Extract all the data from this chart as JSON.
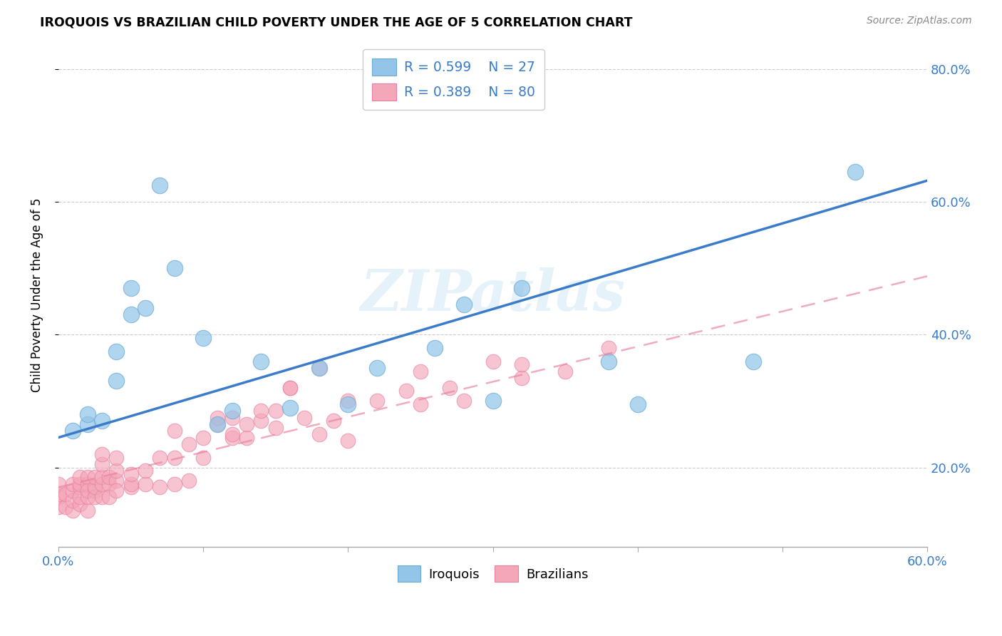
{
  "title": "IROQUOIS VS BRAZILIAN CHILD POVERTY UNDER THE AGE OF 5 CORRELATION CHART",
  "source": "Source: ZipAtlas.com",
  "ylabel": "Child Poverty Under the Age of 5",
  "xlim": [
    0.0,
    0.6
  ],
  "ylim": [
    0.08,
    0.84
  ],
  "xtick_positions": [
    0.0,
    0.1,
    0.2,
    0.3,
    0.4,
    0.5,
    0.6
  ],
  "xtick_labels": [
    "0.0%",
    "",
    "",
    "",
    "",
    "",
    "60.0%"
  ],
  "ytick_positions": [
    0.2,
    0.4,
    0.6,
    0.8
  ],
  "ytick_labels": [
    "20.0%",
    "40.0%",
    "60.0%",
    "80.0%"
  ],
  "iroquois_color": "#92C5E8",
  "iroquois_edge": "#6AAAD4",
  "brazilians_color": "#F4A7B9",
  "brazilians_edge": "#E87FA0",
  "line_iroquois_color": "#3A7CC9",
  "line_brazilians_color": "#E87FA0",
  "legend_color": "#3A7CC9",
  "R_iroquois": 0.599,
  "N_iroquois": 27,
  "R_brazilians": 0.389,
  "N_brazilians": 80,
  "watermark": "ZIPatlas",
  "iroquois_intercept": 0.245,
  "iroquois_slope": 0.645,
  "brazilians_intercept": 0.17,
  "brazilians_slope": 0.53,
  "iroquois_x": [
    0.01,
    0.02,
    0.02,
    0.03,
    0.04,
    0.04,
    0.05,
    0.05,
    0.06,
    0.07,
    0.08,
    0.1,
    0.11,
    0.12,
    0.14,
    0.16,
    0.18,
    0.2,
    0.22,
    0.26,
    0.28,
    0.3,
    0.32,
    0.38,
    0.4,
    0.48,
    0.55
  ],
  "iroquois_y": [
    0.255,
    0.265,
    0.28,
    0.27,
    0.33,
    0.375,
    0.43,
    0.47,
    0.44,
    0.625,
    0.5,
    0.395,
    0.265,
    0.285,
    0.36,
    0.29,
    0.35,
    0.295,
    0.35,
    0.38,
    0.445,
    0.3,
    0.47,
    0.36,
    0.295,
    0.36,
    0.645
  ],
  "brazilians_x": [
    0.0,
    0.0,
    0.0,
    0.0,
    0.005,
    0.005,
    0.01,
    0.01,
    0.01,
    0.01,
    0.015,
    0.015,
    0.015,
    0.015,
    0.015,
    0.02,
    0.02,
    0.02,
    0.02,
    0.02,
    0.025,
    0.025,
    0.025,
    0.025,
    0.03,
    0.03,
    0.03,
    0.03,
    0.03,
    0.035,
    0.035,
    0.035,
    0.04,
    0.04,
    0.04,
    0.04,
    0.05,
    0.05,
    0.05,
    0.06,
    0.06,
    0.07,
    0.07,
    0.08,
    0.08,
    0.08,
    0.09,
    0.09,
    0.1,
    0.1,
    0.11,
    0.11,
    0.12,
    0.12,
    0.12,
    0.13,
    0.13,
    0.14,
    0.14,
    0.15,
    0.15,
    0.16,
    0.16,
    0.17,
    0.18,
    0.18,
    0.19,
    0.2,
    0.2,
    0.22,
    0.24,
    0.25,
    0.25,
    0.27,
    0.28,
    0.3,
    0.32,
    0.32,
    0.35,
    0.38
  ],
  "brazilians_y": [
    0.155,
    0.14,
    0.16,
    0.175,
    0.14,
    0.16,
    0.135,
    0.15,
    0.165,
    0.175,
    0.145,
    0.17,
    0.155,
    0.175,
    0.185,
    0.135,
    0.155,
    0.175,
    0.185,
    0.165,
    0.165,
    0.155,
    0.17,
    0.185,
    0.155,
    0.175,
    0.185,
    0.205,
    0.22,
    0.175,
    0.155,
    0.185,
    0.18,
    0.165,
    0.195,
    0.215,
    0.17,
    0.175,
    0.19,
    0.175,
    0.195,
    0.17,
    0.215,
    0.175,
    0.215,
    0.255,
    0.18,
    0.235,
    0.215,
    0.245,
    0.265,
    0.275,
    0.245,
    0.275,
    0.25,
    0.245,
    0.265,
    0.27,
    0.285,
    0.26,
    0.285,
    0.32,
    0.32,
    0.275,
    0.25,
    0.35,
    0.27,
    0.24,
    0.3,
    0.3,
    0.315,
    0.295,
    0.345,
    0.32,
    0.3,
    0.36,
    0.335,
    0.355,
    0.345,
    0.38
  ]
}
